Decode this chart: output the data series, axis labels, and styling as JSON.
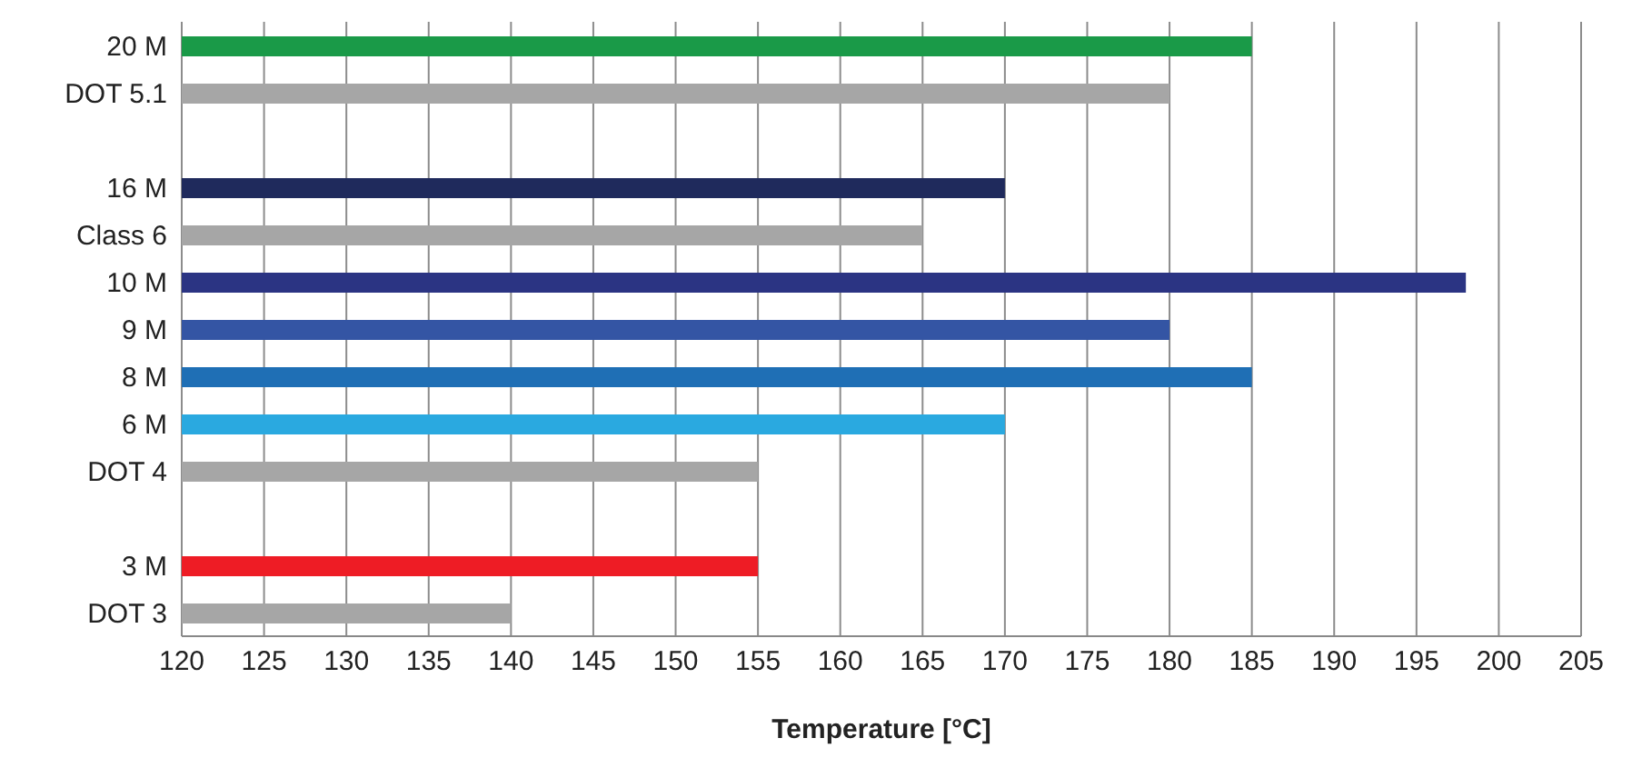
{
  "chart_data": {
    "type": "bar",
    "orientation": "horizontal",
    "xlabel": "Temperature [°C]",
    "categories": [
      "20 M",
      "DOT 5.1",
      null,
      "16 M",
      "Class 6",
      "10 M",
      "9 M",
      "8 M",
      "6 M",
      "DOT 4",
      null,
      "3 M",
      "DOT 3"
    ],
    "values": [
      185,
      180,
      null,
      170,
      165,
      198,
      180,
      185,
      170,
      155,
      null,
      155,
      140
    ],
    "colors": [
      "#1a9a48",
      "#a6a6a6",
      "#a6a6a6",
      "#1f2a5c",
      "#a6a6a6",
      "#2b3483",
      "#3455a4",
      "#1f6fb5",
      "#2aa9e0",
      "#a6a6a6",
      "#a6a6a6",
      "#ee1c25",
      "#a6a6a6"
    ],
    "xlim": [
      120,
      205
    ],
    "xticks": [
      120,
      125,
      130,
      135,
      140,
      145,
      150,
      155,
      160,
      165,
      170,
      175,
      180,
      185,
      190,
      195,
      200,
      205
    ],
    "grid": "x",
    "legend": false
  }
}
